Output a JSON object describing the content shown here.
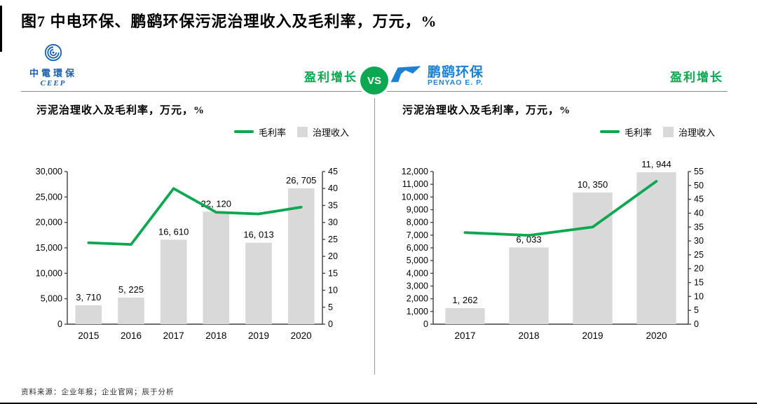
{
  "title": "图7  中电环保、鹏鹞环保污泥治理收入及毛利率，万元，%",
  "vs_label": "VS",
  "footer": "资料来源：企业年报；企业官网；辰于分析",
  "colors": {
    "green": "#0ca750",
    "bar": "#d9d9d9",
    "axis": "#3f3f3f",
    "ceep_blue": "#1b5fae",
    "penyao_blue": "#1e80d2"
  },
  "panels": [
    {
      "logo": {
        "icon": "ceep-swirl-icon",
        "cn": "中電環保",
        "en": "CEEP"
      },
      "badge": "盈利增长",
      "subtitle": "污泥治理收入及毛利率，万元，%",
      "legend": [
        {
          "type": "line",
          "label": "毛利率"
        },
        {
          "type": "box",
          "label": "治理收入"
        }
      ]
    },
    {
      "logo": {
        "icon": "penyao-swoosh-icon",
        "cn": "鹏鹞环保",
        "en": "PENYAO E. P."
      },
      "badge": "盈利增长",
      "subtitle": "污泥治理收入及毛利率，万元，%",
      "legend": [
        {
          "type": "line",
          "label": "毛利率"
        },
        {
          "type": "box",
          "label": "治理收入"
        }
      ]
    }
  ],
  "chart_data": [
    {
      "type": "bar",
      "title": "中电环保 污泥治理收入及毛利率，万元，%",
      "categories": [
        "2015",
        "2016",
        "2017",
        "2018",
        "2019",
        "2020"
      ],
      "series": [
        {
          "name": "治理收入",
          "type": "bar",
          "axis": "left",
          "values": [
            3710,
            5225,
            16610,
            22120,
            16013,
            26705
          ],
          "labels": [
            "3, 710",
            "5, 225",
            "16, 610",
            "22, 120",
            "16, 013",
            "26, 705"
          ]
        },
        {
          "name": "毛利率",
          "type": "line",
          "axis": "right",
          "values": [
            24,
            23.5,
            40,
            33,
            32.5,
            34.5
          ]
        }
      ],
      "left_axis": {
        "min": 0,
        "max": 30000,
        "step": 5000
      },
      "right_axis": {
        "min": 0,
        "max": 45,
        "step": 5
      },
      "grid": false,
      "legend_position": "top-right"
    },
    {
      "type": "bar",
      "title": "鹏鹞环保 污泥治理收入及毛利率，万元，%",
      "categories": [
        "2017",
        "2018",
        "2019",
        "2020"
      ],
      "series": [
        {
          "name": "治理收入",
          "type": "bar",
          "axis": "left",
          "values": [
            1262,
            6033,
            10350,
            11944
          ],
          "labels": [
            "1, 262",
            "6, 033",
            "10, 350",
            "11, 944"
          ]
        },
        {
          "name": "毛利率",
          "type": "line",
          "axis": "right",
          "values": [
            33,
            32,
            35,
            51.5
          ]
        }
      ],
      "left_axis": {
        "min": 0,
        "max": 12000,
        "step": 1000
      },
      "right_axis": {
        "min": 0,
        "max": 55,
        "step": 5
      },
      "grid": false,
      "legend_position": "top-right"
    }
  ]
}
